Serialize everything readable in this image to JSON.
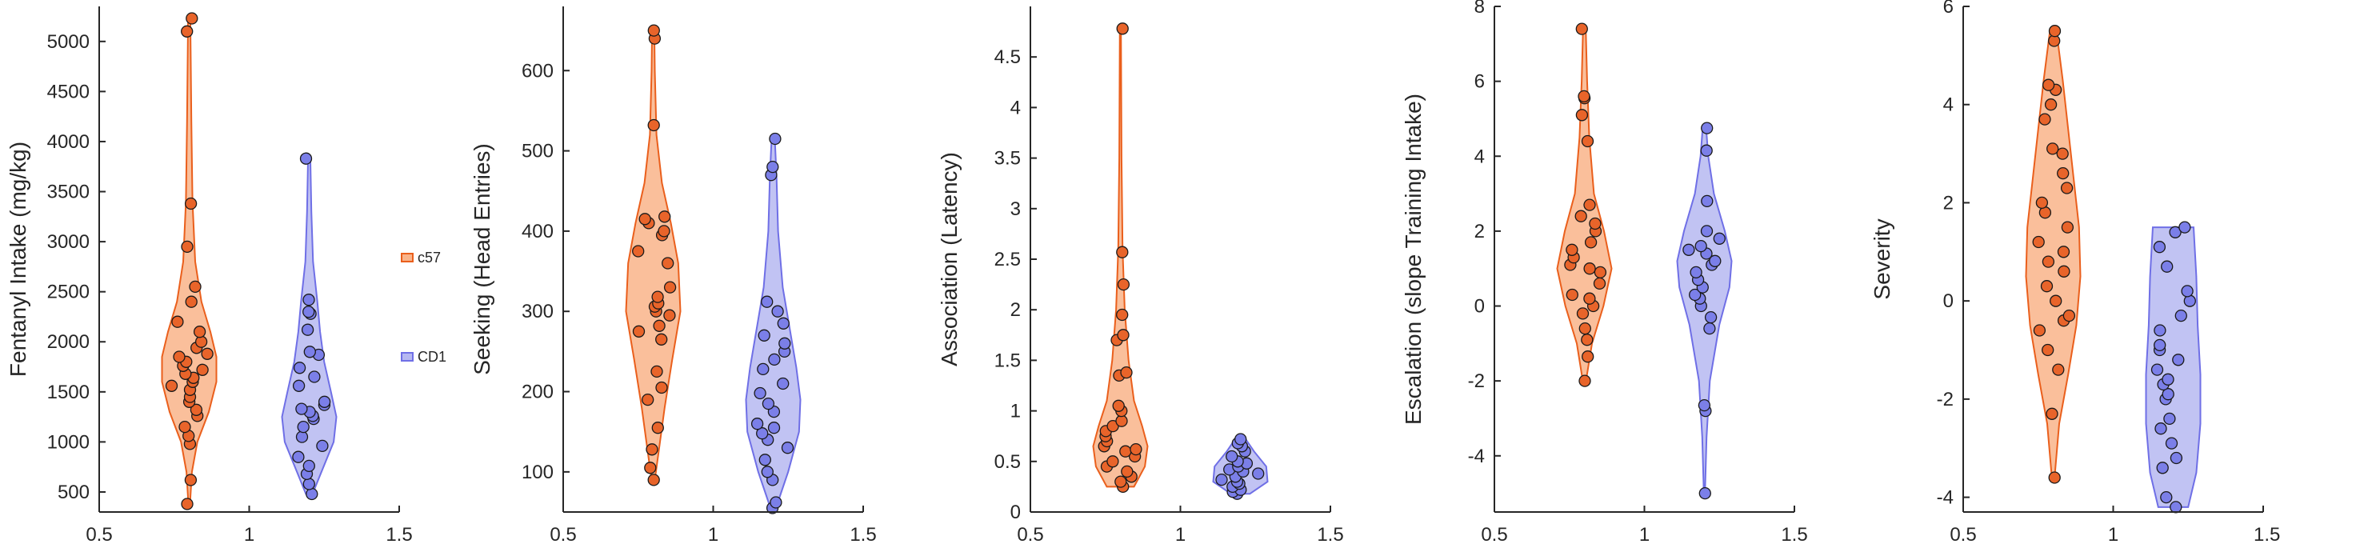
{
  "colors": {
    "c57_fill": "#f9b48a",
    "c57_edge": "#ea5f1c",
    "c57_dot": "#e8642a",
    "cd1_fill": "#b6b8f1",
    "cd1_edge": "#6f6fe6",
    "cd1_dot": "#7b7fe8",
    "axis": "#262626"
  },
  "legend": [
    {
      "label": "c57"
    },
    {
      "label": "CD1"
    }
  ],
  "chart_data": [
    {
      "type": "violin",
      "ylabel": "Fentanyl Intake (mg/kg)",
      "xlim": [
        0.5,
        1.5
      ],
      "xticks": [
        0.5,
        1,
        1.5
      ],
      "xtick_labels": [
        "0.5",
        "1",
        "1.5"
      ],
      "ylim": [
        300,
        5350
      ],
      "yticks": [
        500,
        1000,
        1500,
        2000,
        2500,
        3000,
        3500,
        4000,
        4500,
        5000
      ],
      "ytick_labels": [
        "500",
        "1000",
        "1500",
        "2000",
        "2500",
        "3000",
        "3500",
        "4000",
        "4500",
        "5000"
      ],
      "series": [
        {
          "name": "c57",
          "x": 0.8,
          "profile": [
            [
              380,
              0.03
            ],
            [
              700,
              0.1
            ],
            [
              1000,
              0.3
            ],
            [
              1300,
              0.72
            ],
            [
              1600,
              1.0
            ],
            [
              1850,
              1.0
            ],
            [
              2100,
              0.78
            ],
            [
              2400,
              0.45
            ],
            [
              2800,
              0.22
            ],
            [
              3400,
              0.12
            ],
            [
              4200,
              0.08
            ],
            [
              5230,
              0.04
            ]
          ],
          "points": [
            380,
            620,
            980,
            1060,
            1150,
            1260,
            1320,
            1400,
            1450,
            1520,
            1560,
            1600,
            1640,
            1680,
            1720,
            1760,
            1800,
            1850,
            1880,
            1940,
            2000,
            2100,
            2200,
            2400,
            2550,
            2950,
            3380,
            5100,
            5230
          ]
        },
        {
          "name": "CD1",
          "x": 1.2,
          "profile": [
            [
              480,
              0.12
            ],
            [
              700,
              0.45
            ],
            [
              1000,
              0.9
            ],
            [
              1250,
              1.0
            ],
            [
              1500,
              0.8
            ],
            [
              1800,
              0.55
            ],
            [
              2100,
              0.4
            ],
            [
              2400,
              0.3
            ],
            [
              2800,
              0.14
            ],
            [
              3300,
              0.08
            ],
            [
              3850,
              0.04
            ]
          ],
          "points": [
            480,
            580,
            680,
            760,
            850,
            960,
            1050,
            1150,
            1230,
            1260,
            1300,
            1330,
            1370,
            1400,
            1560,
            1650,
            1740,
            1870,
            1900,
            2120,
            2280,
            2300,
            2420,
            3830
          ]
        }
      ]
    },
    {
      "type": "violin",
      "ylabel": "Seeking (Head Entries)",
      "xlim": [
        0.5,
        1.5
      ],
      "xticks": [
        0.5,
        1,
        1.5
      ],
      "xtick_labels": [
        "0.5",
        "1",
        "1.5"
      ],
      "ylim": [
        50,
        680
      ],
      "yticks": [
        100,
        200,
        300,
        400,
        500,
        600
      ],
      "ytick_labels": [
        "100",
        "200",
        "300",
        "400",
        "500",
        "600"
      ],
      "series": [
        {
          "name": "c57",
          "x": 0.8,
          "profile": [
            [
              90,
              0.06
            ],
            [
              130,
              0.22
            ],
            [
              180,
              0.42
            ],
            [
              240,
              0.7
            ],
            [
              300,
              1.0
            ],
            [
              360,
              0.92
            ],
            [
              410,
              0.65
            ],
            [
              460,
              0.32
            ],
            [
              520,
              0.12
            ],
            [
              600,
              0.06
            ],
            [
              650,
              0.04
            ]
          ],
          "points": [
            90,
            105,
            128,
            155,
            190,
            205,
            225,
            265,
            275,
            282,
            295,
            300,
            306,
            310,
            318,
            330,
            360,
            375,
            395,
            400,
            410,
            415,
            418,
            532,
            640,
            650
          ]
        },
        {
          "name": "CD1",
          "x": 1.2,
          "profile": [
            [
              55,
              0.1
            ],
            [
              100,
              0.55
            ],
            [
              150,
              0.95
            ],
            [
              190,
              1.0
            ],
            [
              230,
              0.85
            ],
            [
              280,
              0.6
            ],
            [
              330,
              0.35
            ],
            [
              400,
              0.18
            ],
            [
              470,
              0.12
            ],
            [
              515,
              0.06
            ]
          ],
          "points": [
            55,
            62,
            90,
            100,
            115,
            130,
            140,
            148,
            155,
            160,
            175,
            185,
            198,
            210,
            228,
            240,
            250,
            260,
            270,
            285,
            300,
            312,
            470,
            480,
            515
          ]
        }
      ]
    },
    {
      "type": "violin",
      "ylabel": "Association (Latency)",
      "xlim": [
        0.5,
        1.5
      ],
      "xticks": [
        0.5,
        1,
        1.5
      ],
      "xtick_labels": [
        "0.5",
        "1",
        "1.5"
      ],
      "ylim": [
        0,
        5
      ],
      "yticks": [
        0,
        0.5,
        1,
        1.5,
        2,
        2.5,
        3,
        3.5,
        4,
        4.5
      ],
      "ytick_labels": [
        "0",
        "0.5",
        "1",
        "1.5",
        "2",
        "2.5",
        "3",
        "3.5",
        "4",
        "4.5"
      ],
      "series": [
        {
          "name": "c57",
          "x": 0.8,
          "profile": [
            [
              0.25,
              0.5
            ],
            [
              0.45,
              0.9
            ],
            [
              0.65,
              1.0
            ],
            [
              0.85,
              0.8
            ],
            [
              1.1,
              0.5
            ],
            [
              1.5,
              0.3
            ],
            [
              2.0,
              0.16
            ],
            [
              2.6,
              0.08
            ],
            [
              3.5,
              0.04
            ],
            [
              4.78,
              0.02
            ]
          ],
          "points": [
            0.25,
            0.3,
            0.35,
            0.4,
            0.45,
            0.5,
            0.55,
            0.6,
            0.62,
            0.65,
            0.7,
            0.75,
            0.8,
            0.85,
            0.9,
            1.0,
            1.05,
            1.35,
            1.38,
            1.7,
            1.75,
            1.95,
            2.25,
            2.57,
            4.78
          ]
        },
        {
          "name": "CD1",
          "x": 1.2,
          "profile": [
            [
              0.18,
              0.35
            ],
            [
              0.3,
              1.0
            ],
            [
              0.45,
              0.95
            ],
            [
              0.6,
              0.5
            ],
            [
              0.75,
              0.12
            ]
          ],
          "points": [
            0.18,
            0.2,
            0.22,
            0.25,
            0.28,
            0.3,
            0.32,
            0.35,
            0.38,
            0.4,
            0.42,
            0.45,
            0.48,
            0.5,
            0.55,
            0.6,
            0.65,
            0.68,
            0.72
          ]
        }
      ]
    },
    {
      "type": "violin",
      "ylabel": "Escalation (slope Training Intake)",
      "xlim": [
        0.5,
        1.5
      ],
      "xticks": [
        0.5,
        1,
        1.5
      ],
      "xtick_labels": [
        "0.5",
        "1",
        "1.5"
      ],
      "ylim": [
        -5.5,
        8
      ],
      "yticks": [
        -4,
        -2,
        0,
        2,
        4,
        6,
        8
      ],
      "ytick_labels": [
        "-4",
        "-2",
        "0",
        "2",
        "4",
        "6",
        "8"
      ],
      "series": [
        {
          "name": "c57",
          "x": 0.8,
          "profile": [
            [
              -2.0,
              0.06
            ],
            [
              -1.0,
              0.28
            ],
            [
              0.0,
              0.7
            ],
            [
              1.0,
              1.0
            ],
            [
              2.0,
              0.72
            ],
            [
              3.0,
              0.35
            ],
            [
              4.5,
              0.18
            ],
            [
              6.0,
              0.1
            ],
            [
              7.4,
              0.05
            ]
          ],
          "points": [
            -2.0,
            -1.35,
            -0.9,
            -0.6,
            -0.2,
            0.0,
            0.2,
            0.3,
            0.6,
            0.9,
            1.0,
            1.1,
            1.3,
            1.5,
            1.7,
            2.0,
            2.2,
            2.4,
            2.7,
            4.4,
            5.1,
            5.55,
            5.6,
            7.4
          ]
        },
        {
          "name": "CD1",
          "x": 1.2,
          "profile": [
            [
              -5.0,
              0.02
            ],
            [
              -3.5,
              0.08
            ],
            [
              -2.0,
              0.2
            ],
            [
              -0.5,
              0.55
            ],
            [
              0.5,
              0.92
            ],
            [
              1.2,
              1.0
            ],
            [
              2.0,
              0.75
            ],
            [
              3.0,
              0.35
            ],
            [
              4.0,
              0.14
            ],
            [
              4.8,
              0.06
            ]
          ],
          "points": [
            -5.0,
            -2.8,
            -2.65,
            -0.6,
            -0.3,
            0.0,
            0.2,
            0.3,
            0.5,
            0.7,
            0.9,
            1.1,
            1.2,
            1.4,
            1.5,
            1.6,
            1.8,
            2.0,
            2.8,
            4.15,
            4.75
          ]
        }
      ]
    },
    {
      "type": "violin",
      "ylabel": "Severity",
      "xlim": [
        0.5,
        1.5
      ],
      "xticks": [
        0.5,
        1,
        1.5
      ],
      "xtick_labels": [
        "0.5",
        "1",
        "1.5"
      ],
      "ylim": [
        -4.3,
        6
      ],
      "yticks": [
        -4,
        -2,
        0,
        2,
        4,
        6
      ],
      "ytick_labels": [
        "-4",
        "-2",
        "0",
        "2",
        "4",
        "6"
      ],
      "series": [
        {
          "name": "c57",
          "x": 0.8,
          "profile": [
            [
              -3.6,
              0.05
            ],
            [
              -2.5,
              0.22
            ],
            [
              -1.5,
              0.55
            ],
            [
              -0.5,
              0.85
            ],
            [
              0.5,
              1.0
            ],
            [
              1.5,
              0.95
            ],
            [
              2.5,
              0.75
            ],
            [
              3.5,
              0.55
            ],
            [
              4.5,
              0.35
            ],
            [
              5.5,
              0.12
            ]
          ],
          "points": [
            -3.6,
            -2.3,
            -1.4,
            -1.0,
            -0.6,
            -0.4,
            -0.3,
            0.0,
            0.3,
            0.6,
            0.8,
            1.0,
            1.2,
            1.5,
            1.8,
            2.0,
            2.3,
            2.6,
            3.0,
            3.1,
            3.7,
            4.0,
            4.3,
            4.4,
            5.3,
            5.5
          ]
        },
        {
          "name": "CD1",
          "x": 1.2,
          "profile": [
            [
              -4.2,
              0.55
            ],
            [
              -3.5,
              0.85
            ],
            [
              -2.5,
              1.0
            ],
            [
              -1.5,
              1.0
            ],
            [
              -0.5,
              0.9
            ],
            [
              0.5,
              0.85
            ],
            [
              1.5,
              0.75
            ]
          ],
          "points": [
            -4.2,
            -4.0,
            -3.4,
            -3.2,
            -2.9,
            -2.6,
            -2.4,
            -2.0,
            -1.9,
            -1.7,
            -1.6,
            -1.4,
            -1.2,
            -1.0,
            -0.9,
            -0.6,
            -0.3,
            0.0,
            0.2,
            0.7,
            1.1,
            1.4,
            1.5
          ]
        }
      ]
    }
  ]
}
